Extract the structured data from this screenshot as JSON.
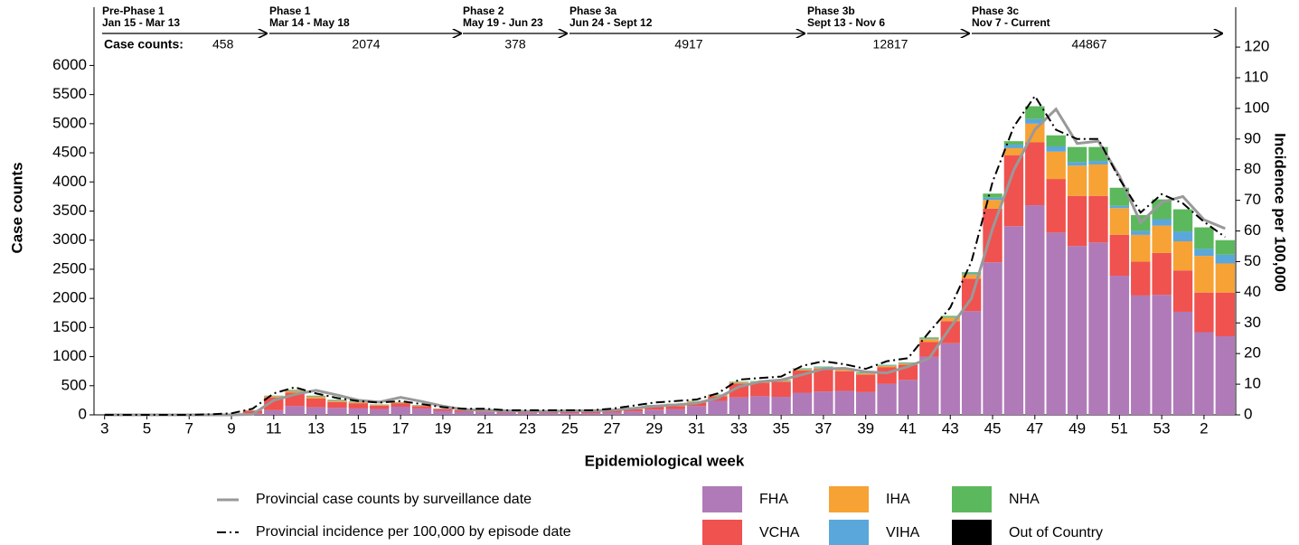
{
  "chart_data": {
    "type": "bar",
    "stacked": true,
    "x_label": "Epidemiological week",
    "y_label": "Case counts",
    "y2_label": "Incidence per 100,000",
    "ylim": [
      0,
      7000
    ],
    "yticks": [
      0,
      500,
      1000,
      1500,
      2000,
      2500,
      3000,
      3500,
      4000,
      4500,
      5000,
      5500,
      6000
    ],
    "y2lim": [
      0,
      133
    ],
    "y2ticks": [
      0,
      10,
      20,
      30,
      40,
      50,
      60,
      70,
      80,
      90,
      100,
      110,
      120
    ],
    "count_label": "Case counts:",
    "annotations": [
      {
        "title": "Pre-Phase 1",
        "dates": "Jan 15 - Mar 13",
        "count": 458
      },
      {
        "title": "Phase 1",
        "dates": "Mar 14 - May 18",
        "count": 2074
      },
      {
        "title": "Phase 2",
        "dates": "May 19 - Jun 23",
        "count": 378
      },
      {
        "title": "Phase 3a",
        "dates": "Jun 24 - Sept 12",
        "count": 4917
      },
      {
        "title": "Phase 3b",
        "dates": "Sept 13 - Nov 6",
        "count": 12817
      },
      {
        "title": "Phase 3c",
        "dates": "Nov 7 - Current",
        "count": 44867
      }
    ],
    "categories": [
      "3",
      null,
      "5",
      null,
      "7",
      null,
      "9",
      null,
      "11",
      null,
      "13",
      null,
      "15",
      null,
      "17",
      null,
      "19",
      null,
      "21",
      null,
      "23",
      null,
      "25",
      null,
      "27",
      null,
      "29",
      null,
      "31",
      null,
      "33",
      null,
      "35",
      null,
      "37",
      null,
      "39",
      null,
      "41",
      null,
      "43",
      null,
      "45",
      null,
      "47",
      null,
      "49",
      null,
      "51",
      null,
      "53",
      null,
      "2",
      null
    ],
    "series": [
      {
        "name": "FHA",
        "color": "#b07ab8",
        "values": [
          0,
          0,
          0,
          1,
          1,
          3,
          6,
          25,
          80,
          150,
          130,
          120,
          110,
          100,
          140,
          110,
          70,
          55,
          50,
          40,
          30,
          30,
          30,
          30,
          40,
          60,
          90,
          100,
          150,
          240,
          300,
          320,
          310,
          380,
          400,
          410,
          390,
          530,
          600,
          1000,
          1230,
          1780,
          2620,
          3240,
          3600,
          3130,
          2900,
          2960,
          2390,
          2050,
          2060,
          1770,
          1420,
          1350
        ]
      },
      {
        "name": "VCHA",
        "color": "#f0524f",
        "values": [
          0,
          0,
          1,
          2,
          3,
          6,
          10,
          45,
          220,
          230,
          150,
          100,
          90,
          60,
          60,
          40,
          30,
          25,
          25,
          20,
          20,
          25,
          25,
          25,
          30,
          35,
          50,
          50,
          60,
          80,
          240,
          230,
          260,
          380,
          390,
          340,
          300,
          290,
          260,
          250,
          380,
          560,
          920,
          1220,
          1080,
          920,
          860,
          800,
          700,
          580,
          720,
          710,
          680,
          750
        ]
      },
      {
        "name": "IHA",
        "color": "#f7a234",
        "values": [
          0,
          0,
          0,
          0,
          0,
          1,
          2,
          5,
          20,
          30,
          30,
          20,
          15,
          10,
          10,
          10,
          5,
          5,
          8,
          5,
          5,
          8,
          8,
          10,
          12,
          15,
          20,
          25,
          20,
          15,
          15,
          15,
          15,
          20,
          20,
          25,
          20,
          20,
          20,
          50,
          60,
          70,
          150,
          120,
          320,
          470,
          520,
          540,
          460,
          460,
          470,
          500,
          630,
          500
        ]
      },
      {
        "name": "VIHA",
        "color": "#5aa7dc",
        "values": [
          0,
          0,
          0,
          0,
          1,
          0,
          1,
          3,
          5,
          10,
          10,
          10,
          5,
          5,
          5,
          5,
          3,
          2,
          3,
          2,
          2,
          3,
          3,
          3,
          5,
          5,
          5,
          10,
          5,
          5,
          5,
          5,
          5,
          10,
          10,
          10,
          10,
          10,
          10,
          10,
          10,
          20,
          40,
          60,
          80,
          90,
          60,
          60,
          40,
          70,
          110,
          170,
          120,
          150
        ]
      },
      {
        "name": "NHA",
        "color": "#5cb85c",
        "values": [
          0,
          0,
          0,
          0,
          0,
          0,
          0,
          1,
          5,
          10,
          10,
          10,
          10,
          5,
          5,
          5,
          2,
          3,
          4,
          3,
          3,
          4,
          4,
          2,
          3,
          5,
          5,
          5,
          5,
          10,
          10,
          10,
          10,
          10,
          10,
          15,
          10,
          10,
          10,
          20,
          20,
          20,
          70,
          60,
          220,
          190,
          260,
          240,
          310,
          270,
          340,
          380,
          370,
          250
        ]
      },
      {
        "name": "Out of Country",
        "color": "#000000",
        "values": [
          0,
          0,
          0,
          0,
          0,
          0,
          1,
          1,
          0,
          0,
          0,
          0,
          0,
          0,
          0,
          0,
          0,
          0,
          0,
          0,
          0,
          0,
          0,
          0,
          0,
          0,
          0,
          0,
          0,
          0,
          0,
          0,
          0,
          0,
          0,
          0,
          0,
          0,
          0,
          0,
          0,
          0,
          0,
          0,
          0,
          0,
          0,
          0,
          0,
          0,
          0,
          0,
          0,
          0
        ]
      },
      {
        "name": "Provincial case counts by surveillance date",
        "type": "line",
        "style": "solid",
        "color": "#999999",
        "axis": "y",
        "values": [
          0,
          0,
          0,
          0,
          0,
          0,
          0,
          10,
          250,
          350,
          420,
          340,
          250,
          220,
          300,
          230,
          150,
          90,
          80,
          70,
          60,
          60,
          70,
          70,
          80,
          110,
          150,
          170,
          200,
          290,
          480,
          570,
          600,
          690,
          790,
          800,
          740,
          720,
          830,
          970,
          1500,
          2000,
          3200,
          4200,
          4900,
          5250,
          4660,
          4700,
          4100,
          3300,
          3650,
          3750,
          3350,
          3200
        ]
      },
      {
        "name": "Provincial incidence per 100,000 by episode date",
        "type": "line",
        "style": "dashdot",
        "color": "#000000",
        "axis": "y2",
        "values": [
          0,
          0,
          0,
          0,
          0,
          0.2,
          0.5,
          2,
          7,
          9,
          7,
          5.5,
          4.5,
          4,
          4.5,
          3.5,
          2.5,
          2,
          2,
          1.5,
          1.5,
          1.5,
          1.5,
          1.5,
          2,
          3,
          4,
          4.5,
          5,
          7,
          11.5,
          12,
          12.5,
          16,
          17.5,
          16.5,
          15,
          17.5,
          18.5,
          27,
          35,
          50,
          76,
          94,
          104,
          93,
          90,
          90,
          77,
          66,
          72,
          69,
          63,
          58
        ]
      }
    ]
  }
}
